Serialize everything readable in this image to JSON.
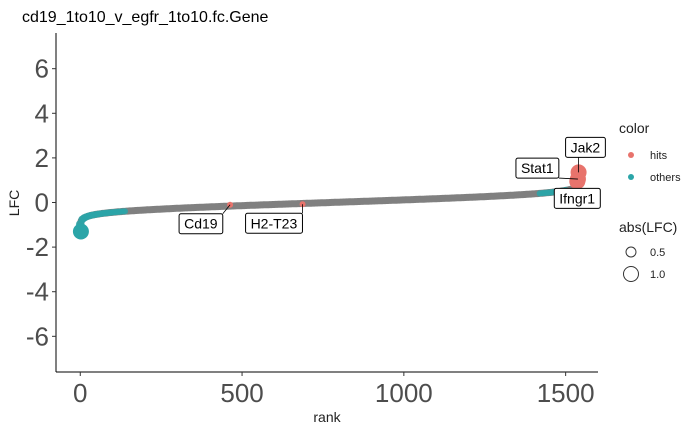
{
  "chart_data": {
    "type": "scatter",
    "title": "cd19_1to10_v_egfr_1to10.fc.Gene",
    "xlabel": "rank",
    "ylabel": "LFC",
    "xlim": [
      -75,
      1600
    ],
    "ylim": [
      -7.6,
      7.6
    ],
    "x_ticks": [
      "0",
      "500",
      "1000",
      "1500"
    ],
    "y_ticks": [
      "-6",
      "-4",
      "-2",
      "0",
      "2",
      "4",
      "6"
    ],
    "legend": {
      "color_title": "color",
      "color_items": [
        {
          "label": "hits",
          "color": "#E8736C"
        },
        {
          "label": "others",
          "color": "#2BA5A8"
        }
      ],
      "size_title": "abs(LFC)",
      "size_items": [
        {
          "label": "0.5",
          "value": 0.5
        },
        {
          "label": "1.0",
          "value": 1.0
        }
      ],
      "placement": "right"
    },
    "curve_color": "#808080",
    "highlighted_points": [
      {
        "label": "Cd19",
        "x": 463,
        "y": -0.1,
        "group": "hits"
      },
      {
        "label": "H2-T23",
        "x": 687,
        "y": -0.08,
        "group": "hits"
      },
      {
        "label": "Stat1",
        "x": 1538,
        "y": 1.05,
        "group": "hits"
      },
      {
        "label": "Jak2",
        "x": 1540,
        "y": 1.35,
        "group": "hits"
      },
      {
        "label": "Ifngr1",
        "x": 1536,
        "y": 0.95,
        "group": "hits"
      }
    ]
  }
}
